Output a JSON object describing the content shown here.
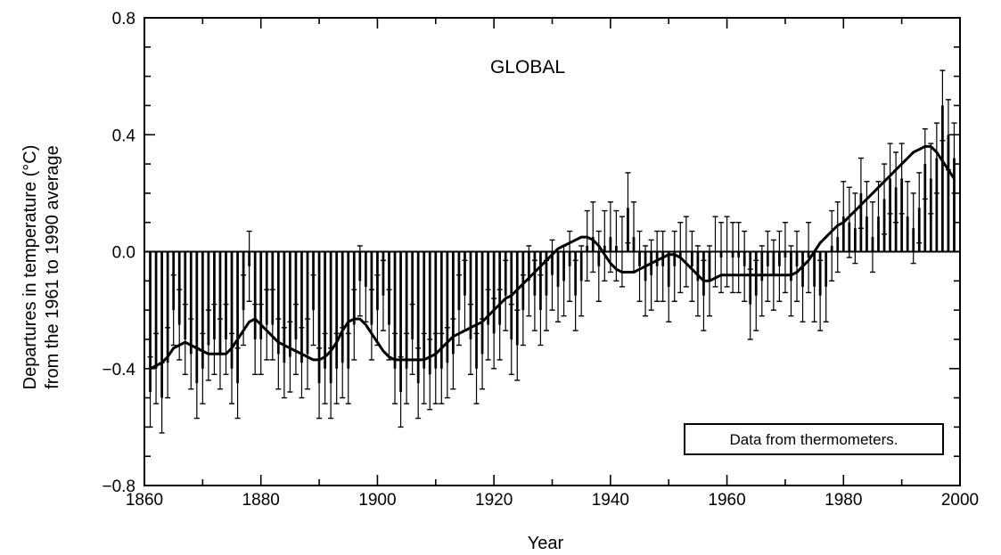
{
  "chart_data": {
    "type": "bar",
    "title": "GLOBAL",
    "xlabel": "Year",
    "ylabel_line1": "Departures in temperature (°C)",
    "ylabel_line2": "from the 1961 to 1990 average",
    "annotation": "Data from thermometers.",
    "xlim": [
      1860,
      2000
    ],
    "ylim": [
      -0.8,
      0.8
    ],
    "x_ticks": [
      {
        "value": 1860,
        "label": "1860"
      },
      {
        "value": 1880,
        "label": "1880"
      },
      {
        "value": 1900,
        "label": "1900"
      },
      {
        "value": 1920,
        "label": "1920"
      },
      {
        "value": 1940,
        "label": "1940"
      },
      {
        "value": 1960,
        "label": "1960"
      },
      {
        "value": 1980,
        "label": "1980"
      },
      {
        "value": 2000,
        "label": "2000"
      }
    ],
    "y_ticks": [
      {
        "value": 0.8,
        "label": "0.8"
      },
      {
        "value": 0.4,
        "label": "0.4"
      },
      {
        "value": 0.0,
        "label": "0.0"
      },
      {
        "value": -0.4,
        "label": "−0.4"
      },
      {
        "value": -0.8,
        "label": "−0.8"
      }
    ],
    "years_start": 1861,
    "values": [
      -0.48,
      -0.4,
      -0.5,
      -0.38,
      -0.2,
      -0.25,
      -0.3,
      -0.35,
      -0.45,
      -0.4,
      -0.32,
      -0.3,
      -0.35,
      -0.3,
      -0.4,
      -0.45,
      -0.2,
      -0.05,
      -0.3,
      -0.3,
      -0.25,
      -0.25,
      -0.35,
      -0.38,
      -0.36,
      -0.3,
      -0.38,
      -0.35,
      -0.2,
      -0.45,
      -0.4,
      -0.45,
      -0.4,
      -0.38,
      -0.4,
      -0.25,
      -0.1,
      -0.12,
      -0.25,
      -0.2,
      -0.15,
      -0.25,
      -0.4,
      -0.48,
      -0.4,
      -0.3,
      -0.45,
      -0.4,
      -0.42,
      -0.4,
      -0.4,
      -0.38,
      -0.35,
      -0.2,
      -0.15,
      -0.3,
      -0.4,
      -0.35,
      -0.25,
      -0.28,
      -0.25,
      -0.15,
      -0.3,
      -0.32,
      -0.2,
      -0.1,
      -0.15,
      -0.2,
      -0.15,
      -0.08,
      -0.12,
      -0.1,
      -0.05,
      -0.15,
      -0.1,
      0.02,
      0.05,
      -0.05,
      0.02,
      0.05,
      0.02,
      0.0,
      0.15,
      0.05,
      -0.05,
      -0.1,
      -0.08,
      -0.05,
      -0.05,
      -0.12,
      -0.05,
      -0.02,
      0.0,
      -0.05,
      -0.1,
      -0.15,
      -0.1,
      0.0,
      -0.02,
      0.0,
      -0.02,
      -0.02,
      -0.05,
      -0.18,
      -0.15,
      -0.1,
      -0.05,
      -0.08,
      -0.05,
      -0.02,
      -0.1,
      -0.05,
      -0.12,
      -0.02,
      -0.12,
      -0.15,
      -0.12,
      0.02,
      0.05,
      0.12,
      0.1,
      0.08,
      0.2,
      0.12,
      0.05,
      0.12,
      0.18,
      0.25,
      0.22,
      0.25,
      0.12,
      0.08,
      0.15,
      0.3,
      0.25,
      0.32,
      0.5,
      0.4,
      0.32
    ],
    "smoothed": [
      -0.4,
      -0.39,
      -0.38,
      -0.36,
      -0.33,
      -0.32,
      -0.31,
      -0.32,
      -0.33,
      -0.34,
      -0.35,
      -0.35,
      -0.35,
      -0.35,
      -0.33,
      -0.3,
      -0.27,
      -0.24,
      -0.23,
      -0.25,
      -0.27,
      -0.29,
      -0.31,
      -0.32,
      -0.33,
      -0.34,
      -0.35,
      -0.36,
      -0.37,
      -0.37,
      -0.36,
      -0.34,
      -0.31,
      -0.27,
      -0.24,
      -0.23,
      -0.23,
      -0.25,
      -0.28,
      -0.31,
      -0.34,
      -0.36,
      -0.37,
      -0.37,
      -0.37,
      -0.37,
      -0.37,
      -0.37,
      -0.36,
      -0.35,
      -0.33,
      -0.31,
      -0.29,
      -0.28,
      -0.27,
      -0.26,
      -0.25,
      -0.24,
      -0.22,
      -0.2,
      -0.18,
      -0.16,
      -0.15,
      -0.13,
      -0.11,
      -0.09,
      -0.07,
      -0.05,
      -0.03,
      -0.01,
      0.01,
      0.02,
      0.03,
      0.04,
      0.05,
      0.05,
      0.04,
      0.02,
      -0.01,
      -0.04,
      -0.06,
      -0.07,
      -0.07,
      -0.07,
      -0.06,
      -0.05,
      -0.04,
      -0.03,
      -0.02,
      -0.01,
      -0.01,
      -0.02,
      -0.04,
      -0.06,
      -0.08,
      -0.1,
      -0.1,
      -0.09,
      -0.08,
      -0.08,
      -0.08,
      -0.08,
      -0.08,
      -0.08,
      -0.08,
      -0.08,
      -0.08,
      -0.08,
      -0.08,
      -0.08,
      -0.08,
      -0.07,
      -0.05,
      -0.03,
      0.0,
      0.03,
      0.05,
      0.07,
      0.09,
      0.1,
      0.12,
      0.14,
      0.16,
      0.18,
      0.2,
      0.22,
      0.24,
      0.26,
      0.28,
      0.3,
      0.32,
      0.34,
      0.35,
      0.36,
      0.36,
      0.34,
      0.31,
      0.28,
      0.25
    ],
    "error_half": 0.12
  }
}
